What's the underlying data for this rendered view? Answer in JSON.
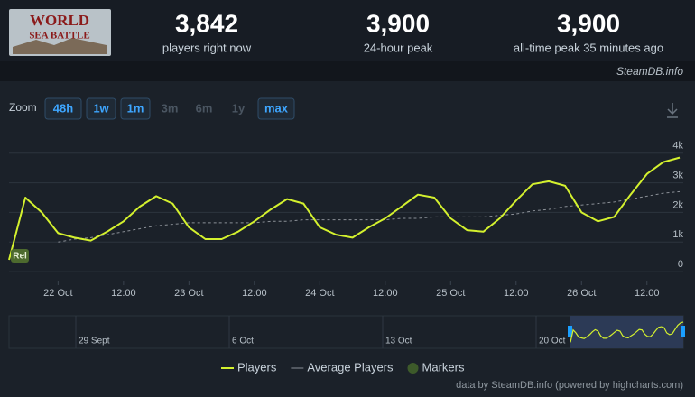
{
  "header": {
    "logo_lines": [
      "WORLD",
      "SEA BATTLE"
    ],
    "stats": [
      {
        "value": "3,842",
        "label": "players right now"
      },
      {
        "value": "3,900",
        "label": "24-hour peak"
      },
      {
        "value": "3,900",
        "label": "all-time peak 35 minutes ago"
      }
    ],
    "source": "SteamDB.info"
  },
  "chart_data": {
    "type": "line",
    "zoom": {
      "label": "Zoom",
      "buttons": [
        {
          "label": "48h",
          "enabled": true
        },
        {
          "label": "1w",
          "enabled": true
        },
        {
          "label": "1m",
          "enabled": true
        },
        {
          "label": "3m",
          "enabled": false
        },
        {
          "label": "6m",
          "enabled": false
        },
        {
          "label": "1y",
          "enabled": false
        },
        {
          "label": "max",
          "enabled": true
        }
      ]
    },
    "x": [
      "21 Oct 15:00",
      "21 Oct 18:00",
      "21 Oct 21:00",
      "22 Oct 00:00",
      "22 Oct 03:00",
      "22 Oct 06:00",
      "22 Oct 09:00",
      "22 Oct 12:00",
      "22 Oct 15:00",
      "22 Oct 18:00",
      "22 Oct 21:00",
      "23 Oct 00:00",
      "23 Oct 03:00",
      "23 Oct 06:00",
      "23 Oct 09:00",
      "23 Oct 12:00",
      "23 Oct 15:00",
      "23 Oct 18:00",
      "23 Oct 21:00",
      "24 Oct 00:00",
      "24 Oct 03:00",
      "24 Oct 06:00",
      "24 Oct 09:00",
      "24 Oct 12:00",
      "24 Oct 15:00",
      "24 Oct 18:00",
      "24 Oct 21:00",
      "25 Oct 00:00",
      "25 Oct 03:00",
      "25 Oct 06:00",
      "25 Oct 09:00",
      "25 Oct 12:00",
      "25 Oct 15:00",
      "25 Oct 18:00",
      "25 Oct 21:00",
      "26 Oct 00:00",
      "26 Oct 03:00",
      "26 Oct 06:00",
      "26 Oct 09:00",
      "26 Oct 12:00",
      "26 Oct 15:00",
      "26 Oct 18:00"
    ],
    "series": [
      {
        "name": "Players",
        "color": "#d4f12e",
        "values": [
          400,
          2500,
          2000,
          1300,
          1150,
          1050,
          1350,
          1700,
          2200,
          2550,
          2300,
          1500,
          1100,
          1100,
          1350,
          1700,
          2100,
          2450,
          2300,
          1500,
          1250,
          1150,
          1500,
          1800,
          2200,
          2600,
          2500,
          1800,
          1400,
          1350,
          1800,
          2400,
          2950,
          3050,
          2900,
          2000,
          1700,
          1850,
          2600,
          3300,
          3700,
          3850
        ]
      },
      {
        "name": "Average Players",
        "color": "#8a8f96",
        "dashed": true,
        "values": [
          null,
          null,
          null,
          1000,
          1100,
          1150,
          1250,
          1350,
          1450,
          1550,
          1600,
          1650,
          1650,
          1650,
          1650,
          1650,
          1700,
          1700,
          1750,
          1750,
          1750,
          1750,
          1750,
          1750,
          1800,
          1800,
          1850,
          1850,
          1850,
          1850,
          1900,
          1950,
          2050,
          2100,
          2200,
          2250,
          2300,
          2350,
          2450,
          2550,
          2650,
          2700
        ]
      }
    ],
    "markers_label": "Markers",
    "annotation": {
      "label": "Rel",
      "x": "21 Oct 15:00"
    },
    "ylim": [
      -300,
      4600
    ],
    "yticks": [
      0,
      {
        "value": 1000,
        "label": "1k"
      },
      {
        "value": 2000,
        "label": "2k"
      },
      {
        "value": 3000,
        "label": "3k"
      },
      {
        "value": 4000,
        "label": "4k"
      }
    ],
    "xticks": [
      {
        "value": "22 Oct 00:00",
        "label": "22 Oct"
      },
      {
        "value": "22 Oct 12:00",
        "label": "12:00"
      },
      {
        "value": "23 Oct 00:00",
        "label": "23 Oct"
      },
      {
        "value": "23 Oct 12:00",
        "label": "12:00"
      },
      {
        "value": "24 Oct 00:00",
        "label": "24 Oct"
      },
      {
        "value": "24 Oct 12:00",
        "label": "12:00"
      },
      {
        "value": "25 Oct 00:00",
        "label": "25 Oct"
      },
      {
        "value": "25 Oct 12:00",
        "label": "12:00"
      },
      {
        "value": "26 Oct 00:00",
        "label": "26 Oct"
      },
      {
        "value": "26 Oct 12:00",
        "label": "12:00"
      }
    ],
    "grid": true,
    "navigator_labels": [
      "29 Sept",
      "6 Oct",
      "13 Oct",
      "20 Oct"
    ],
    "credits": "data by SteamDB.info (powered by highcharts.com)"
  }
}
